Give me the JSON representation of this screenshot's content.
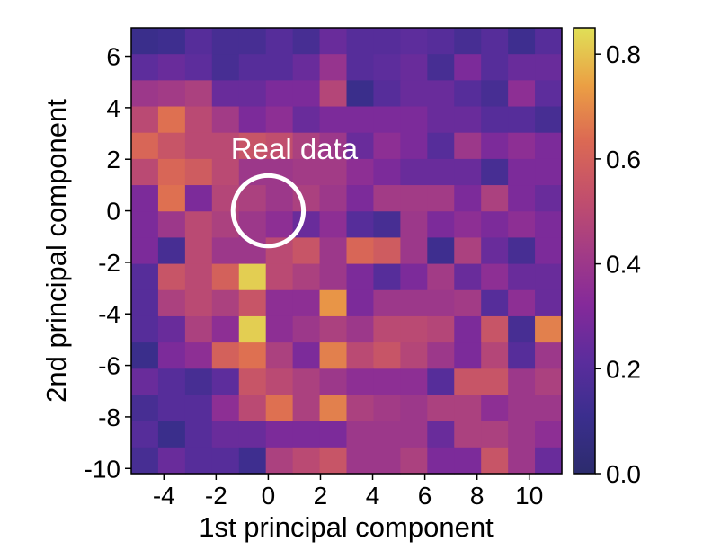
{
  "chart_data": {
    "type": "heatmap",
    "title": "",
    "xlabel": "1st principal component",
    "ylabel": "2nd principal component",
    "x_ticks": [
      "-4",
      "-2",
      "0",
      "2",
      "4",
      "6",
      "8",
      "10"
    ],
    "y_ticks": [
      "6",
      "4",
      "2",
      "0",
      "-2",
      "-4",
      "-6",
      "-8",
      "-10"
    ],
    "x_tick_values": [
      -4,
      -2,
      0,
      2,
      4,
      6,
      8,
      10
    ],
    "y_tick_values": [
      6,
      4,
      2,
      0,
      -2,
      -4,
      -6,
      -8,
      -10
    ],
    "xlim": [
      -5.25,
      11.25
    ],
    "ylim": [
      -10.2,
      7.1
    ],
    "colormap": "plasma",
    "colorbar": {
      "range": [
        0.0,
        0.85
      ],
      "ticks": [
        "0.0",
        "0.2",
        "0.4",
        "0.6",
        "0.8"
      ],
      "tick_values": [
        0.0,
        0.2,
        0.4,
        0.6,
        0.8
      ]
    },
    "grid": false,
    "annotation": {
      "text": "Real data",
      "circle_center": [
        0.0,
        0.0
      ],
      "circle_radius_x": 1.35,
      "text_anchor": [
        1.0,
        2.0
      ]
    },
    "rows_top_to_bottom": [
      [
        0.1,
        0.12,
        0.2,
        0.15,
        0.15,
        0.2,
        0.15,
        0.25,
        0.2,
        0.2,
        0.22,
        0.2,
        0.15,
        0.2,
        0.12,
        0.2
      ],
      [
        0.22,
        0.25,
        0.22,
        0.15,
        0.2,
        0.2,
        0.25,
        0.38,
        0.2,
        0.22,
        0.25,
        0.15,
        0.3,
        0.2,
        0.25,
        0.25
      ],
      [
        0.4,
        0.42,
        0.45,
        0.25,
        0.25,
        0.3,
        0.3,
        0.48,
        0.1,
        0.2,
        0.25,
        0.25,
        0.2,
        0.15,
        0.35,
        0.22
      ],
      [
        0.5,
        0.65,
        0.5,
        0.42,
        0.3,
        0.35,
        0.25,
        0.3,
        0.3,
        0.3,
        0.3,
        0.25,
        0.25,
        0.2,
        0.2,
        0.15
      ],
      [
        0.62,
        0.55,
        0.5,
        0.5,
        0.55,
        0.52,
        0.45,
        0.4,
        0.25,
        0.35,
        0.3,
        0.2,
        0.4,
        0.3,
        0.35,
        0.3
      ],
      [
        0.5,
        0.62,
        0.58,
        0.5,
        0.4,
        0.4,
        0.42,
        0.42,
        0.35,
        0.3,
        0.25,
        0.25,
        0.25,
        0.15,
        0.3,
        0.3
      ],
      [
        0.3,
        0.65,
        0.3,
        0.48,
        0.45,
        0.4,
        0.45,
        0.4,
        0.3,
        0.42,
        0.42,
        0.42,
        0.3,
        0.45,
        0.3,
        0.25
      ],
      [
        0.3,
        0.4,
        0.5,
        0.45,
        0.4,
        0.35,
        0.25,
        0.35,
        0.2,
        0.15,
        0.4,
        0.3,
        0.35,
        0.3,
        0.35,
        0.3
      ],
      [
        0.3,
        0.15,
        0.5,
        0.4,
        0.4,
        0.5,
        0.55,
        0.4,
        0.62,
        0.58,
        0.4,
        0.12,
        0.45,
        0.25,
        0.15,
        0.3
      ],
      [
        0.2,
        0.55,
        0.5,
        0.6,
        0.82,
        0.5,
        0.45,
        0.4,
        0.3,
        0.2,
        0.3,
        0.42,
        0.25,
        0.35,
        0.25,
        0.25
      ],
      [
        0.2,
        0.45,
        0.5,
        0.45,
        0.55,
        0.35,
        0.35,
        0.72,
        0.3,
        0.4,
        0.4,
        0.4,
        0.42,
        0.2,
        0.35,
        0.25
      ],
      [
        0.2,
        0.25,
        0.45,
        0.35,
        0.82,
        0.35,
        0.4,
        0.45,
        0.4,
        0.5,
        0.5,
        0.48,
        0.3,
        0.55,
        0.15,
        0.68
      ],
      [
        0.1,
        0.3,
        0.35,
        0.6,
        0.65,
        0.45,
        0.3,
        0.68,
        0.5,
        0.55,
        0.48,
        0.4,
        0.3,
        0.48,
        0.2,
        0.4
      ],
      [
        0.25,
        0.2,
        0.15,
        0.22,
        0.55,
        0.5,
        0.45,
        0.4,
        0.35,
        0.35,
        0.35,
        0.2,
        0.55,
        0.55,
        0.4,
        0.45
      ],
      [
        0.15,
        0.2,
        0.2,
        0.35,
        0.5,
        0.65,
        0.45,
        0.68,
        0.45,
        0.42,
        0.4,
        0.45,
        0.45,
        0.35,
        0.4,
        0.4
      ],
      [
        0.2,
        0.1,
        0.2,
        0.25,
        0.25,
        0.3,
        0.3,
        0.3,
        0.4,
        0.4,
        0.4,
        0.25,
        0.45,
        0.45,
        0.4,
        0.35
      ],
      [
        0.15,
        0.25,
        0.2,
        0.2,
        0.12,
        0.45,
        0.5,
        0.55,
        0.4,
        0.4,
        0.45,
        0.3,
        0.3,
        0.55,
        0.4,
        0.25
      ]
    ]
  }
}
